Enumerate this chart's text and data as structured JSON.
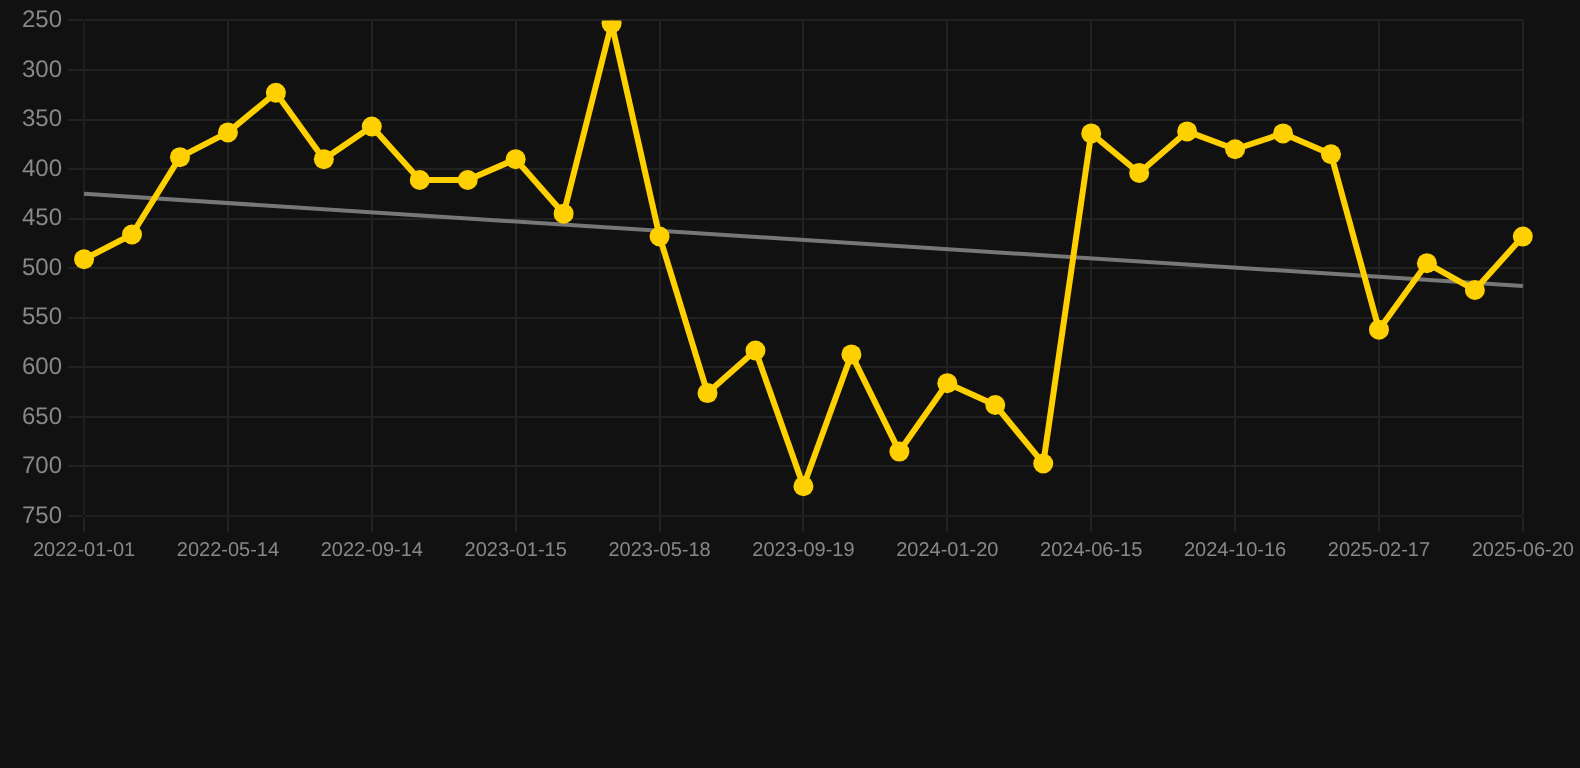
{
  "chart_data": {
    "type": "line",
    "categories": [
      "2022-01-01",
      null,
      null,
      "2022-05-14",
      null,
      null,
      "2022-09-14",
      null,
      null,
      "2023-01-15",
      null,
      null,
      "2023-05-18",
      null,
      null,
      "2023-09-19",
      null,
      null,
      "2024-01-20",
      null,
      null,
      "2024-06-15",
      null,
      null,
      "2024-10-16",
      null,
      null,
      "2025-02-17",
      null,
      null,
      "2025-06-20"
    ],
    "series": [
      {
        "color": "#ffd000",
        "marker": "circle",
        "values": [
          491,
          466,
          388,
          363,
          323,
          390,
          357,
          411,
          411,
          390,
          445,
          253,
          468,
          626,
          583,
          720,
          587,
          685,
          616,
          638,
          697,
          364,
          404,
          362,
          380,
          364,
          385,
          562,
          495,
          522,
          468
        ]
      },
      {
        "color": "#777777",
        "marker": "none",
        "values": [
          425,
          null,
          null,
          null,
          null,
          null,
          null,
          null,
          null,
          null,
          null,
          null,
          null,
          null,
          null,
          null,
          null,
          null,
          null,
          null,
          null,
          null,
          null,
          null,
          null,
          null,
          null,
          null,
          null,
          null,
          518
        ]
      }
    ],
    "ylim": [
      750,
      250
    ],
    "yticks": [
      250,
      300,
      350,
      400,
      450,
      500,
      550,
      600,
      650,
      700,
      750
    ],
    "grid": true,
    "legend": false,
    "line_style": "solid"
  }
}
